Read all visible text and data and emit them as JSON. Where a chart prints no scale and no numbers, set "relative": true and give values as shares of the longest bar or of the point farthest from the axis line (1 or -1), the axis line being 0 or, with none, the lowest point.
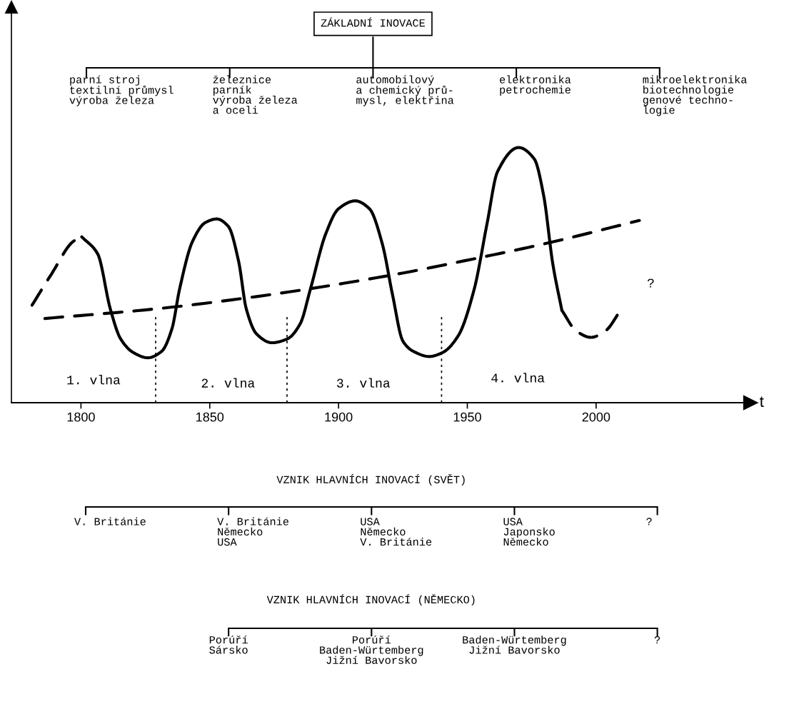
{
  "chart_data": [
    {
      "type": "other",
      "title": "ZÁKLADNÍ INOVACE",
      "categories": [
        "parní stroj\ntextilní průmysl\nvýroba železa",
        "železnice\nparník\nvýroba železa\na oceli",
        "automobilový\na chemický prů-\nmysl, elektřina",
        "elektronika\npetrochemie",
        "mikroelektronika\nbiotechnologie\ngenové techno-\nlogie"
      ]
    },
    {
      "type": "line",
      "relative": true,
      "xlabel": "t",
      "xlim": [
        1773,
        2060
      ],
      "xticks": [
        1800,
        1850,
        1900,
        1950,
        2000
      ],
      "tick_labels": "x",
      "grid": false,
      "legend": false,
      "series": [
        {
          "color": "#000000",
          "line_style": "dashed",
          "x": [
            1781,
            1788.6,
            1797,
            1800.3
          ],
          "values": [
            0.382,
            0.505,
            0.632,
            0.65
          ]
        },
        {
          "color": "#000000",
          "line_style": "solid",
          "x": [
            1800.3,
            1806.5,
            1811.4,
            1815.4,
            1820.4,
            1825.9,
            1831.3,
            1835.3,
            1838.3,
            1843.3,
            1848.3,
            1852.7,
            1857.2,
            1861.2,
            1864.2,
            1868.2,
            1874.1,
            1880.1,
            1885.1,
            1889.1,
            1895,
            1900,
            1906.5,
            1912,
            1917,
            1920.9,
            1925,
            1929.1,
            1935.2,
            1940.3,
            1946.4,
            1952.6,
            1957.7,
            1961.7,
            1969.9,
            1976,
            1979.6,
            1983.2,
            1986.7
          ],
          "values": [
            0.65,
            0.583,
            0.367,
            0.25,
            0.196,
            0.176,
            0.201,
            0.289,
            0.446,
            0.632,
            0.706,
            0.72,
            0.691,
            0.554,
            0.367,
            0.269,
            0.235,
            0.25,
            0.309,
            0.446,
            0.661,
            0.76,
            0.791,
            0.76,
            0.622,
            0.426,
            0.241,
            0.201,
            0.181,
            0.196,
            0.261,
            0.442,
            0.704,
            0.905,
            1.0,
            0.955,
            0.814,
            0.543,
            0.362
          ]
        },
        {
          "color": "#000000",
          "line_style": "dashed",
          "x": [
            1986.7,
            1992.3,
            1998,
            2003.6,
            2009.2
          ],
          "values": [
            0.362,
            0.281,
            0.256,
            0.281,
            0.357
          ]
        },
        {
          "color": "#000000",
          "line_style": "dashed",
          "x": [
            1786,
            1828.4,
            1868.2,
            1918.9,
            1954.6,
            1980.1,
            2016.8
          ],
          "values": [
            0.33,
            0.367,
            0.416,
            0.497,
            0.568,
            0.623,
            0.714
          ]
        }
      ],
      "ref_lines": [
        {
          "axis": "x",
          "value": 1829,
          "line_style": "dotted",
          "color": "#000000"
        },
        {
          "axis": "x",
          "value": 1880,
          "line_style": "dotted",
          "color": "#000000"
        },
        {
          "axis": "x",
          "value": 1940,
          "line_style": "dotted",
          "color": "#000000"
        }
      ],
      "annotations": [
        "1. vlna",
        "2. vlna",
        "3. vlna",
        "4. vlna",
        "?"
      ]
    },
    {
      "type": "other",
      "title": "VZNIK HLAVNÍCH INOVACÍ (SVĚT)",
      "categories": [
        "V. Británie",
        "V. Británie\nNěmecko\nUSA",
        "USA\nNěmecko\nV. Británie",
        "USA\nJaponsko\nNěmecko",
        "?"
      ]
    },
    {
      "type": "other",
      "title": "VZNIK HLAVNÍCH INOVACÍ (NĚMECKO)",
      "categories": [
        null,
        "Porúří\nSársko",
        "Porúří\nBaden-Würtemberg\nJižní Bavorsko",
        "Baden-Würtemberg\nJižní Bavorsko",
        "?"
      ]
    }
  ]
}
